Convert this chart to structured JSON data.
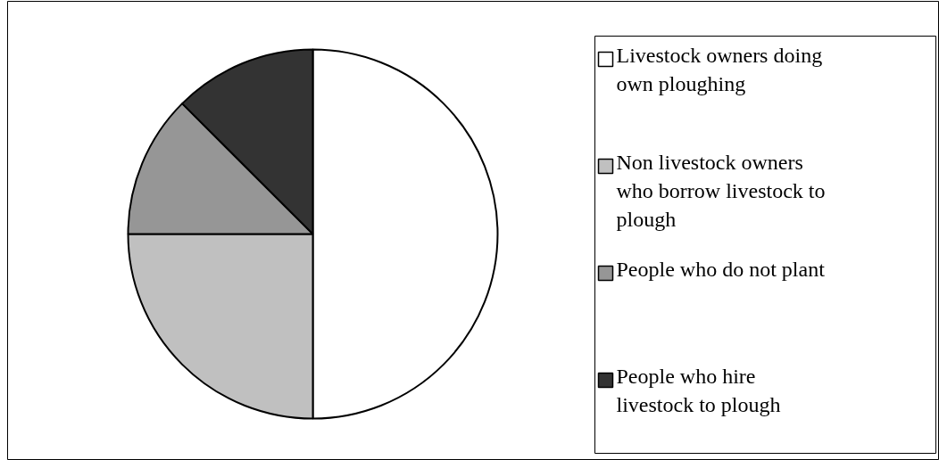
{
  "chart_data": {
    "type": "pie",
    "categories": [
      "Livestock owners doing own ploughing",
      "Non livestock owners who borrow livestock to plough",
      "People who do not plant",
      "People who hire livestock to plough"
    ],
    "values": [
      50,
      25,
      12.5,
      12.5
    ],
    "colors": [
      "#ffffff",
      "#c0c0c0",
      "#969696",
      "#333333"
    ],
    "legend": "right"
  }
}
